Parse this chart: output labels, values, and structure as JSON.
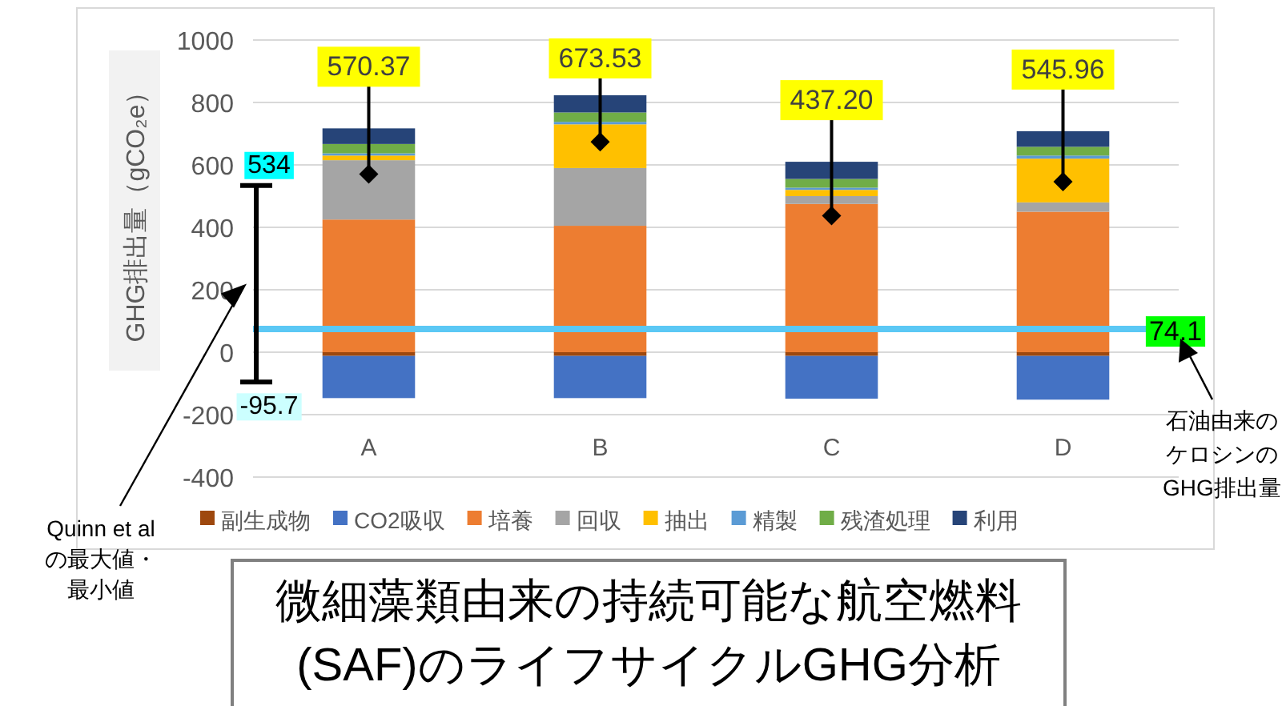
{
  "chart_data": {
    "type": "bar",
    "stacked": true,
    "title": "微細藻類由来の持続可能な航空燃料(SAF)のライフサイクルGHG分析",
    "ylabel": "GHG排出量（gCO₂e）",
    "categories": [
      "A",
      "B",
      "C",
      "D"
    ],
    "ylim": [
      -400,
      1000
    ],
    "yticks": [
      -400,
      -200,
      0,
      200,
      400,
      600,
      800,
      1000
    ],
    "grid": "y",
    "legend": "bottom",
    "series": [
      {
        "name": "副生成物",
        "color": "#9e480e",
        "values": [
          -12,
          -12,
          -12,
          -12
        ]
      },
      {
        "name": "CO2吸収",
        "color": "#4472c4",
        "values": [
          -135,
          -135,
          -137,
          -140
        ]
      },
      {
        "name": "培養",
        "color": "#ed7d31",
        "values": [
          425,
          405,
          475,
          450
        ]
      },
      {
        "name": "回収",
        "color": "#a5a5a5",
        "values": [
          190,
          185,
          25,
          30
        ]
      },
      {
        "name": "抽出",
        "color": "#ffc000",
        "values": [
          15,
          140,
          20,
          140
        ]
      },
      {
        "name": "精製",
        "color": "#5b9bd5",
        "values": [
          7,
          8,
          7,
          10
        ]
      },
      {
        "name": "残渣処理",
        "color": "#70ad47",
        "values": [
          30,
          30,
          28,
          28
        ]
      },
      {
        "name": "利用",
        "color": "#264478",
        "values": [
          50,
          55,
          55,
          50
        ]
      },
      {
        "type": "scatter",
        "marker": "diamond",
        "color": "#000000",
        "values": [
          570.37,
          673.53,
          437.2,
          545.96
        ],
        "value_labels": [
          "570.37",
          "673.53",
          "437.20",
          "545.96"
        ]
      }
    ],
    "ref_lines": [
      {
        "axis": "y",
        "value": 74.1,
        "label": "74.1",
        "color": "#5bc8f5"
      },
      {
        "axis": "y",
        "value": 534,
        "label": "534"
      },
      {
        "axis": "y",
        "value": -95.7,
        "label": "-95.7"
      }
    ],
    "annotations": [
      "Quinn et alの最大値・最小値",
      "石油由来のケロシンのGHG排出量"
    ]
  }
}
